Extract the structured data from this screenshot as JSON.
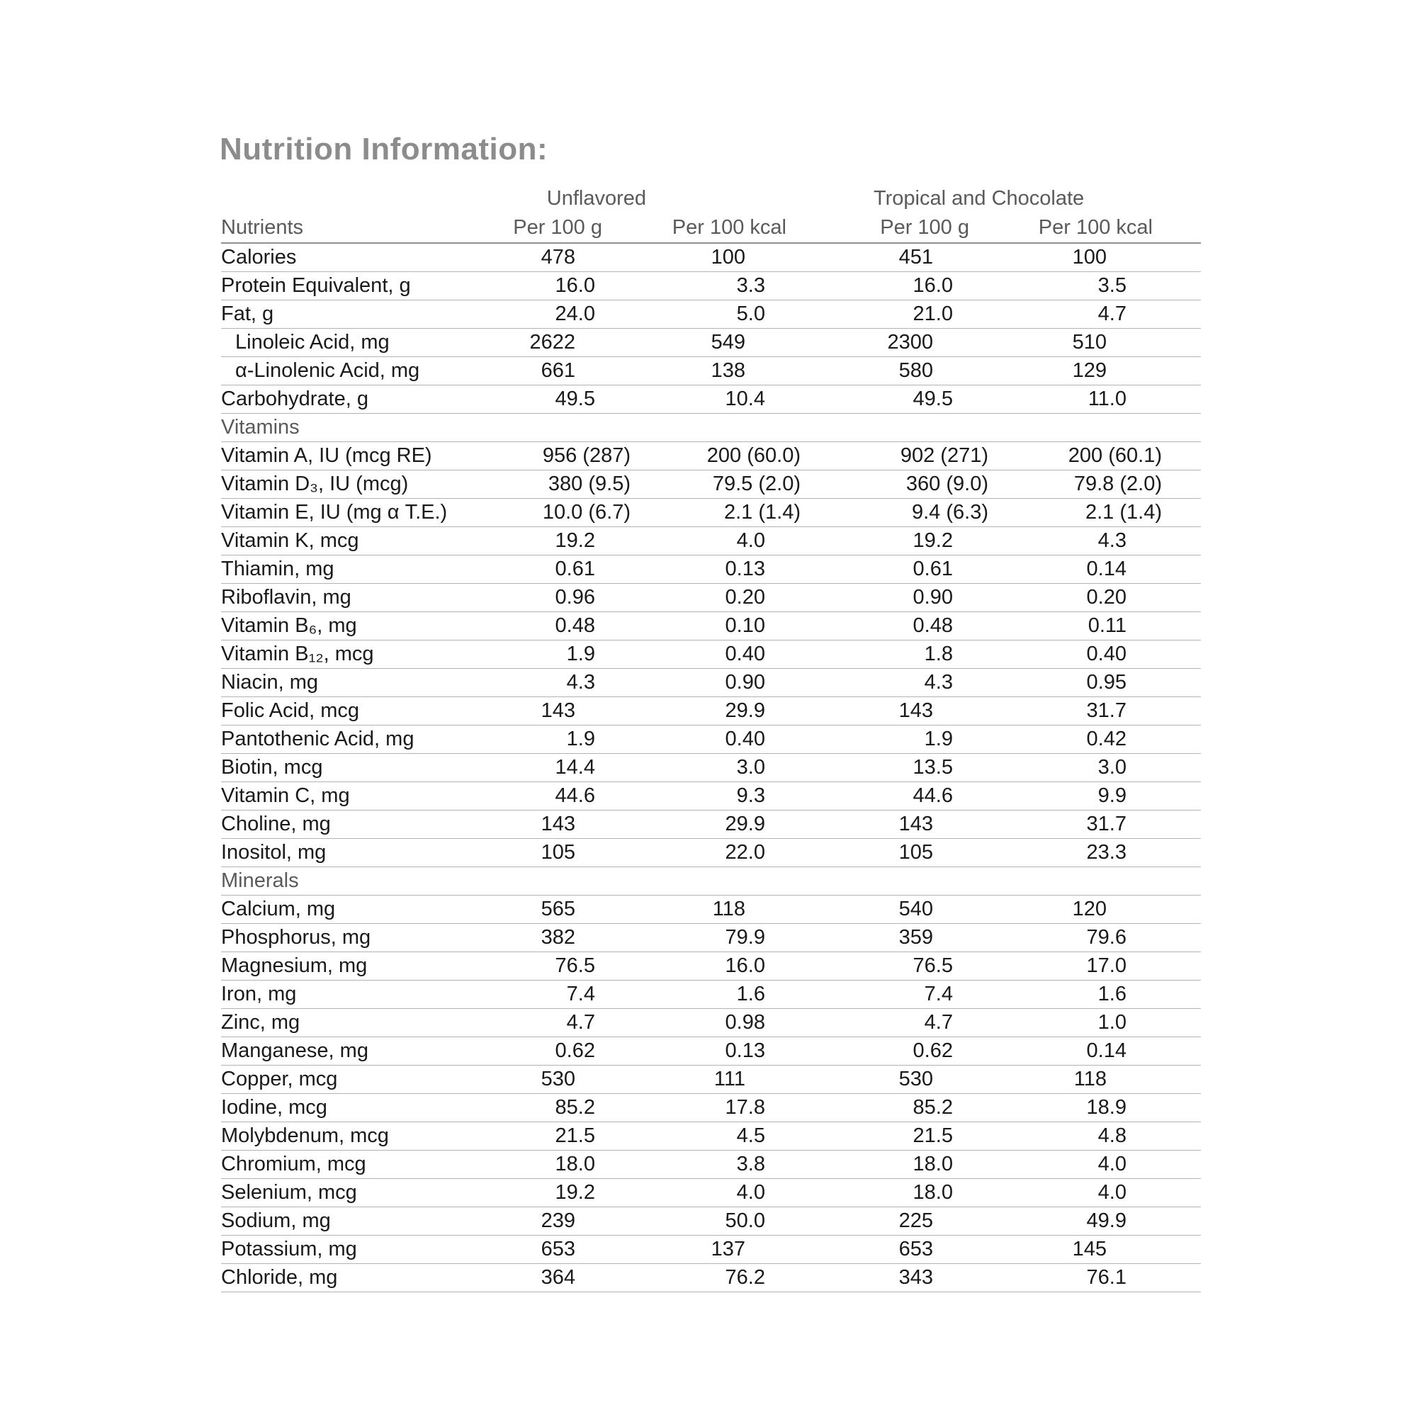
{
  "title": "Nutrition Information:",
  "colors": {
    "title_gray": "#8C8C8C",
    "header_gray": "#5A5A5A",
    "body_text": "#1A1A1A",
    "row_line": "#B3B3B3",
    "header_line": "#8F8F8F",
    "background": "#FFFFFF"
  },
  "table": {
    "group_headers": {
      "unflavored": "Unflavored",
      "tropical": "Tropical and Chocolate"
    },
    "column_headers": {
      "nutrients": "Nutrients",
      "unflavored_per_100_g": "Per 100 g",
      "unflavored_per_100_kcal": "Per 100 kcal",
      "tropical_per_100_g": "Per 100 g",
      "tropical_per_100_kcal": "Per 100 kcal"
    },
    "rows": [
      {
        "type": "data",
        "label": "Calories",
        "indent": false,
        "values": [
          "478",
          "100",
          "451",
          "100"
        ]
      },
      {
        "type": "data",
        "label": "Protein Equivalent, g",
        "indent": false,
        "values": [
          "16.0",
          "3.3",
          "16.0",
          "3.5"
        ]
      },
      {
        "type": "data",
        "label": "Fat, g",
        "indent": false,
        "values": [
          "24.0",
          "5.0",
          "21.0",
          "4.7"
        ]
      },
      {
        "type": "data",
        "label": "Linoleic Acid, mg",
        "indent": true,
        "values": [
          "2622",
          "549",
          "2300",
          "510"
        ]
      },
      {
        "type": "data",
        "label": "α-Linolenic Acid, mg",
        "indent": true,
        "values": [
          "661",
          "138",
          "580",
          "129"
        ]
      },
      {
        "type": "data",
        "label": "Carbohydrate, g",
        "indent": false,
        "values": [
          "49.5",
          "10.4",
          "49.5",
          "11.0"
        ]
      },
      {
        "type": "section",
        "label": "Vitamins"
      },
      {
        "type": "data",
        "label": "Vitamin A, IU (mcg RE)",
        "indent": false,
        "values": [
          "956 (287)",
          "200 (60.0)",
          "902 (271)",
          "200 (60.1)"
        ]
      },
      {
        "type": "data",
        "label": "Vitamin D₃, IU (mcg)",
        "indent": false,
        "values": [
          "380 (9.5)",
          "79.5 (2.0)",
          "360 (9.0)",
          "79.8 (2.0)"
        ]
      },
      {
        "type": "data",
        "label": "Vitamin E, IU (mg α T.E.)",
        "indent": false,
        "values": [
          "10.0 (6.7)",
          "2.1 (1.4)",
          "9.4 (6.3)",
          "2.1 (1.4)"
        ]
      },
      {
        "type": "data",
        "label": "Vitamin K, mcg",
        "indent": false,
        "values": [
          "19.2",
          "4.0",
          "19.2",
          "4.3"
        ]
      },
      {
        "type": "data",
        "label": "Thiamin, mg",
        "indent": false,
        "values": [
          "0.61",
          "0.13",
          "0.61",
          "0.14"
        ]
      },
      {
        "type": "data",
        "label": "Riboflavin, mg",
        "indent": false,
        "values": [
          "0.96",
          "0.20",
          "0.90",
          "0.20"
        ]
      },
      {
        "type": "data",
        "label": "Vitamin B₆, mg",
        "indent": false,
        "values": [
          "0.48",
          "0.10",
          "0.48",
          "0.11"
        ]
      },
      {
        "type": "data",
        "label": "Vitamin B₁₂, mcg",
        "indent": false,
        "values": [
          "1.9",
          "0.40",
          "1.8",
          "0.40"
        ]
      },
      {
        "type": "data",
        "label": "Niacin, mg",
        "indent": false,
        "values": [
          "4.3",
          "0.90",
          "4.3",
          "0.95"
        ]
      },
      {
        "type": "data",
        "label": "Folic Acid, mcg",
        "indent": false,
        "values": [
          "143",
          "29.9",
          "143",
          "31.7"
        ]
      },
      {
        "type": "data",
        "label": "Pantothenic Acid, mg",
        "indent": false,
        "values": [
          "1.9",
          "0.40",
          "1.9",
          "0.42"
        ]
      },
      {
        "type": "data",
        "label": "Biotin, mcg",
        "indent": false,
        "values": [
          "14.4",
          "3.0",
          "13.5",
          "3.0"
        ]
      },
      {
        "type": "data",
        "label": "Vitamin C, mg",
        "indent": false,
        "values": [
          "44.6",
          "9.3",
          "44.6",
          "9.9"
        ]
      },
      {
        "type": "data",
        "label": "Choline, mg",
        "indent": false,
        "values": [
          "143",
          "29.9",
          "143",
          "31.7"
        ]
      },
      {
        "type": "data",
        "label": "Inositol, mg",
        "indent": false,
        "values": [
          "105",
          "22.0",
          "105",
          "23.3"
        ]
      },
      {
        "type": "section",
        "label": "Minerals"
      },
      {
        "type": "data",
        "label": "Calcium, mg",
        "indent": false,
        "values": [
          "565",
          "118",
          "540",
          "120"
        ]
      },
      {
        "type": "data",
        "label": "Phosphorus, mg",
        "indent": false,
        "values": [
          "382",
          "79.9",
          "359",
          "79.6"
        ]
      },
      {
        "type": "data",
        "label": "Magnesium, mg",
        "indent": false,
        "values": [
          "76.5",
          "16.0",
          "76.5",
          "17.0"
        ]
      },
      {
        "type": "data",
        "label": "Iron, mg",
        "indent": false,
        "values": [
          "7.4",
          "1.6",
          "7.4",
          "1.6"
        ]
      },
      {
        "type": "data",
        "label": "Zinc, mg",
        "indent": false,
        "values": [
          "4.7",
          "0.98",
          "4.7",
          "1.0"
        ]
      },
      {
        "type": "data",
        "label": "Manganese, mg",
        "indent": false,
        "values": [
          "0.62",
          "0.13",
          "0.62",
          "0.14"
        ]
      },
      {
        "type": "data",
        "label": "Copper, mcg",
        "indent": false,
        "values": [
          "530",
          "111",
          "530",
          "118"
        ]
      },
      {
        "type": "data",
        "label": "Iodine, mcg",
        "indent": false,
        "values": [
          "85.2",
          "17.8",
          "85.2",
          "18.9"
        ]
      },
      {
        "type": "data",
        "label": "Molybdenum, mcg",
        "indent": false,
        "values": [
          "21.5",
          "4.5",
          "21.5",
          "4.8"
        ]
      },
      {
        "type": "data",
        "label": "Chromium, mcg",
        "indent": false,
        "values": [
          "18.0",
          "3.8",
          "18.0",
          "4.0"
        ]
      },
      {
        "type": "data",
        "label": "Selenium, mcg",
        "indent": false,
        "values": [
          "19.2",
          "4.0",
          "18.0",
          "4.0"
        ]
      },
      {
        "type": "data",
        "label": "Sodium, mg",
        "indent": false,
        "values": [
          "239",
          "50.0",
          "225",
          "49.9"
        ]
      },
      {
        "type": "data",
        "label": "Potassium, mg",
        "indent": false,
        "values": [
          "653",
          "137",
          "653",
          "145"
        ]
      },
      {
        "type": "data",
        "label": "Chloride, mg",
        "indent": false,
        "values": [
          "364",
          "76.2",
          "343",
          "76.1"
        ]
      }
    ]
  }
}
